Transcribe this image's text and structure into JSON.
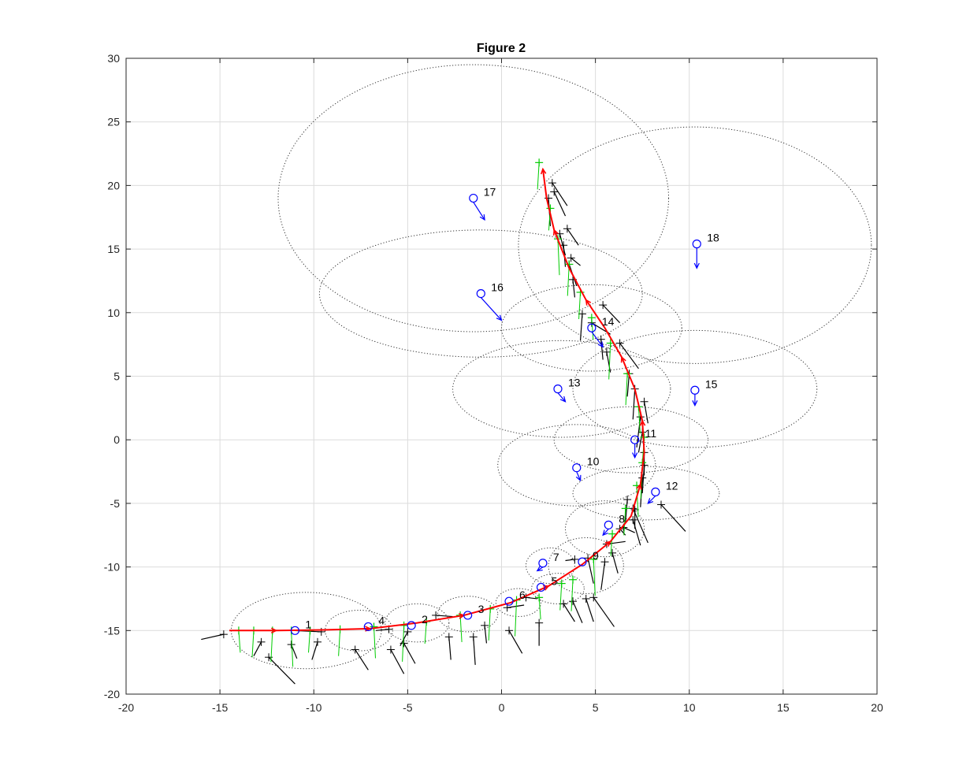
{
  "chart_data": {
    "type": "scatter",
    "title": "Figure 2",
    "xlabel": "",
    "ylabel": "",
    "xlim": [
      -20,
      20
    ],
    "ylim": [
      -20,
      30
    ],
    "grid": true,
    "x_ticks": [
      "-20",
      "-15",
      "-10",
      "-5",
      "0",
      "5",
      "10",
      "15",
      "20"
    ],
    "y_ticks": [
      "-20",
      "-15",
      "-10",
      "-5",
      "0",
      "5",
      "10",
      "15",
      "20",
      "25",
      "30"
    ],
    "colors": {
      "estimated_path": "#ff0000",
      "robot_measurements": "#00cc00",
      "odometry_markers": "#000000",
      "landmarks": "#0000ff",
      "uncertainty_ellipses": "#333333",
      "grid": "#dcdcdc"
    },
    "estimated_path": [
      [
        -14.5,
        -15.0
      ],
      [
        -12.0,
        -15.0
      ],
      [
        -9.5,
        -14.95
      ],
      [
        -7.0,
        -14.85
      ],
      [
        -4.5,
        -14.4
      ],
      [
        -2.0,
        -13.8
      ],
      [
        0.5,
        -12.8
      ],
      [
        2.5,
        -11.5
      ],
      [
        4.3,
        -9.8
      ],
      [
        5.8,
        -8.0
      ],
      [
        6.9,
        -6.0
      ],
      [
        7.4,
        -3.5
      ],
      [
        7.6,
        -1.0
      ],
      [
        7.5,
        1.5
      ],
      [
        7.1,
        4.0
      ],
      [
        6.4,
        6.5
      ],
      [
        5.5,
        8.8
      ],
      [
        4.5,
        11.0
      ],
      [
        3.6,
        13.5
      ],
      [
        2.8,
        16.5
      ],
      [
        2.4,
        19.0
      ],
      [
        2.2,
        21.3
      ]
    ],
    "robot_measurements": [
      [
        -14.0,
        -15.0
      ],
      [
        -13.2,
        -15.0
      ],
      [
        -12.2,
        -15.0
      ],
      [
        -11.2,
        -15.0
      ],
      [
        -10.2,
        -15.0
      ],
      [
        -8.6,
        -14.9
      ],
      [
        -6.8,
        -14.7
      ],
      [
        -5.2,
        -14.6
      ],
      [
        -4.0,
        -14.3
      ],
      [
        -2.2,
        -13.8
      ],
      [
        -0.6,
        -13.3
      ],
      [
        0.8,
        -12.6
      ],
      [
        2.0,
        -12.4
      ],
      [
        3.2,
        -11.3
      ],
      [
        3.8,
        -11.0
      ],
      [
        4.9,
        -9.4
      ],
      [
        5.9,
        -7.4
      ],
      [
        6.6,
        -5.4
      ],
      [
        7.2,
        -3.6
      ],
      [
        7.5,
        -1.8
      ],
      [
        7.6,
        0.2
      ],
      [
        7.3,
        2.6
      ],
      [
        6.7,
        5.2
      ],
      [
        5.8,
        7.6
      ],
      [
        4.8,
        9.6
      ],
      [
        4.2,
        11.6
      ],
      [
        3.6,
        13.8
      ],
      [
        3.0,
        15.8
      ],
      [
        2.6,
        18.2
      ],
      [
        2.0,
        21.8
      ]
    ],
    "odometry_markers": [
      [
        -14.8,
        -15.3,
        -16.0,
        -15.7
      ],
      [
        -12.8,
        -15.9,
        -13.2,
        -17.0
      ],
      [
        -12.4,
        -17.1,
        -11.0,
        -19.2
      ],
      [
        -11.2,
        -16.1,
        -10.9,
        -17.2
      ],
      [
        -9.8,
        -15.9,
        -10.1,
        -17.3
      ],
      [
        -9.6,
        -15.1,
        -11.1,
        -15.0
      ],
      [
        -7.8,
        -16.5,
        -7.1,
        -18.1
      ],
      [
        -6.0,
        -14.9,
        -6.7,
        -15.0
      ],
      [
        -5.9,
        -16.5,
        -5.2,
        -18.4
      ],
      [
        -5.0,
        -15.1,
        -5.4,
        -16.2
      ],
      [
        -5.2,
        -16.0,
        -4.6,
        -17.6
      ],
      [
        -3.5,
        -13.8,
        -2.6,
        -13.9
      ],
      [
        -2.8,
        -15.5,
        -2.7,
        -17.3
      ],
      [
        -1.5,
        -15.5,
        -1.4,
        -17.7
      ],
      [
        -0.9,
        -14.6,
        -0.8,
        -16.0
      ],
      [
        0.4,
        -15.0,
        1.1,
        -16.8
      ],
      [
        0.3,
        -13.2,
        1.2,
        -13.0
      ],
      [
        2.0,
        -14.4,
        2.0,
        -16.2
      ],
      [
        1.3,
        -12.4,
        1.9,
        -12.5
      ],
      [
        3.3,
        -12.9,
        3.9,
        -14.3
      ],
      [
        3.8,
        -12.7,
        4.3,
        -14.4
      ],
      [
        4.5,
        -12.5,
        4.9,
        -14.3
      ],
      [
        4.9,
        -12.4,
        6.0,
        -14.7
      ],
      [
        3.9,
        -9.4,
        3.4,
        -9.5
      ],
      [
        4.6,
        -9.3,
        4.9,
        -11.3
      ],
      [
        5.5,
        -9.6,
        5.3,
        -11.8
      ],
      [
        5.9,
        -8.9,
        6.2,
        -10.5
      ],
      [
        5.6,
        -8.2,
        6.6,
        -8.0
      ],
      [
        6.3,
        -7.0,
        6.6,
        -7.5
      ],
      [
        6.5,
        -6.9,
        7.1,
        -7.3
      ],
      [
        7.0,
        -6.3,
        7.4,
        -8.3
      ],
      [
        7.0,
        -5.4,
        7.8,
        -8.1
      ],
      [
        6.7,
        -4.7,
        6.6,
        -6.5
      ],
      [
        7.1,
        -5.5,
        7.1,
        -7.0
      ],
      [
        8.5,
        -5.1,
        9.8,
        -7.2
      ],
      [
        7.5,
        -3.0,
        7.4,
        -5.3
      ],
      [
        7.6,
        -2.0,
        7.5,
        -4.2
      ],
      [
        7.6,
        -1.0,
        7.6,
        -2.8
      ],
      [
        7.5,
        0.6,
        7.3,
        -1.0
      ],
      [
        7.4,
        1.8,
        7.2,
        -0.6
      ],
      [
        7.6,
        3.0,
        7.8,
        1.3
      ],
      [
        7.1,
        4.0,
        7.0,
        1.6
      ],
      [
        6.8,
        5.2,
        6.7,
        3.4
      ],
      [
        6.3,
        7.6,
        7.3,
        5.6
      ],
      [
        5.6,
        6.9,
        5.8,
        5.3
      ],
      [
        5.3,
        7.9,
        5.4,
        6.3
      ],
      [
        4.8,
        9.2,
        5.8,
        8.3
      ],
      [
        4.3,
        9.9,
        4.2,
        7.8
      ],
      [
        5.4,
        10.6,
        6.3,
        9.2
      ],
      [
        3.8,
        12.6,
        3.9,
        11.2
      ],
      [
        3.6,
        13.8,
        4.0,
        12.1
      ],
      [
        3.7,
        14.3,
        4.2,
        13.7
      ],
      [
        3.3,
        15.3,
        3.4,
        13.6
      ],
      [
        3.5,
        16.6,
        4.1,
        15.3
      ],
      [
        3.1,
        16.2,
        3.4,
        14.5
      ],
      [
        2.5,
        19.0,
        2.6,
        16.8
      ],
      [
        2.8,
        19.5,
        3.4,
        17.6
      ],
      [
        2.7,
        20.2,
        3.5,
        18.4
      ]
    ],
    "landmarks": [
      {
        "id": "1",
        "x": -11.0,
        "y": -15.0,
        "dx": 0.0,
        "dy": 0.0,
        "ex": -10.4,
        "ey": -15.0,
        "rx": 4.0,
        "ry": 3.0
      },
      {
        "id": "2",
        "x": -4.8,
        "y": -14.6,
        "dx": 0.0,
        "dy": 0.0,
        "ex": -4.5,
        "ey": -14.4,
        "rx": 1.7,
        "ry": 1.5
      },
      {
        "id": "3",
        "x": -1.8,
        "y": -13.8,
        "dx": 0.0,
        "dy": 0.0,
        "ex": -1.8,
        "ey": -13.7,
        "rx": 1.6,
        "ry": 1.4
      },
      {
        "id": "4",
        "x": -7.1,
        "y": -14.7,
        "dx": 0.0,
        "dy": 0.0,
        "ex": -7.6,
        "ey": -15.0,
        "rx": 1.8,
        "ry": 1.6
      },
      {
        "id": "5",
        "x": 2.1,
        "y": -11.6,
        "dx": 0.0,
        "dy": 0.0,
        "ex": 3.0,
        "ey": -11.7,
        "rx": 1.4,
        "ry": 1.2
      },
      {
        "id": "6",
        "x": 0.4,
        "y": -12.7,
        "dx": 0.0,
        "dy": 0.0,
        "ex": 0.9,
        "ey": -12.8,
        "rx": 1.2,
        "ry": 1.1
      },
      {
        "id": "7",
        "x": 2.2,
        "y": -9.7,
        "dx": -0.3,
        "dy": -0.6,
        "ex": 2.6,
        "ey": -9.9,
        "rx": 1.3,
        "ry": 1.4
      },
      {
        "id": "8",
        "x": 5.7,
        "y": -6.7,
        "dx": -0.3,
        "dy": -0.8,
        "ex": 5.5,
        "ey": -7.0,
        "rx": 2.1,
        "ry": 2.2
      },
      {
        "id": "9",
        "x": 4.3,
        "y": -9.6,
        "dx": 0.0,
        "dy": 0.0,
        "ex": 4.5,
        "ey": -9.9,
        "rx": 2.0,
        "ry": 2.2
      },
      {
        "id": "10",
        "x": 4.0,
        "y": -2.2,
        "dx": 0.2,
        "dy": -1.0,
        "ex": 4.0,
        "ey": -2.0,
        "rx": 4.2,
        "ry": 3.2
      },
      {
        "id": "11",
        "x": 7.1,
        "y": 0.0,
        "dx": 0.0,
        "dy": -1.4,
        "ex": 6.9,
        "ey": 0.0,
        "rx": 4.1,
        "ry": 2.6
      },
      {
        "id": "12",
        "x": 8.2,
        "y": -4.1,
        "dx": -0.4,
        "dy": -0.9,
        "ex": 7.7,
        "ey": -4.2,
        "rx": 3.9,
        "ry": 2.1
      },
      {
        "id": "13",
        "x": 3.0,
        "y": 4.0,
        "dx": 0.4,
        "dy": -1.0,
        "ex": 3.2,
        "ey": 4.0,
        "rx": 5.8,
        "ry": 3.8
      },
      {
        "id": "14",
        "x": 4.8,
        "y": 8.8,
        "dx": 0.6,
        "dy": -1.5,
        "ex": 4.8,
        "ey": 8.8,
        "rx": 4.8,
        "ry": 3.4
      },
      {
        "id": "15",
        "x": 10.3,
        "y": 3.9,
        "dx": 0.0,
        "dy": -1.2,
        "ex": 10.3,
        "ey": 4.0,
        "rx": 6.5,
        "ry": 4.6
      },
      {
        "id": "16",
        "x": -1.1,
        "y": 11.5,
        "dx": 1.1,
        "dy": -2.1,
        "ex": -1.1,
        "ey": 11.5,
        "rx": 8.6,
        "ry": 5.0
      },
      {
        "id": "17",
        "x": -1.5,
        "y": 19.0,
        "dx": 0.6,
        "dy": -1.7,
        "ex": -1.5,
        "ey": 19.0,
        "rx": 10.4,
        "ry": 10.5
      },
      {
        "id": "18",
        "x": 10.4,
        "y": 15.4,
        "dx": 0.0,
        "dy": -1.9,
        "ex": 10.3,
        "ey": 15.3,
        "rx": 9.4,
        "ry": 9.3
      }
    ]
  }
}
